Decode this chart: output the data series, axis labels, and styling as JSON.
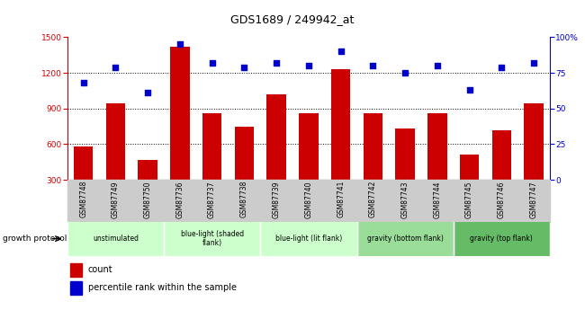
{
  "title": "GDS1689 / 249942_at",
  "samples": [
    "GSM87748",
    "GSM87749",
    "GSM87750",
    "GSM87736",
    "GSM87737",
    "GSM87738",
    "GSM87739",
    "GSM87740",
    "GSM87741",
    "GSM87742",
    "GSM87743",
    "GSM87744",
    "GSM87745",
    "GSM87746",
    "GSM87747"
  ],
  "counts": [
    580,
    940,
    470,
    1420,
    860,
    750,
    1020,
    860,
    1230,
    860,
    730,
    860,
    510,
    720,
    940
  ],
  "percentiles": [
    68,
    79,
    61,
    95,
    82,
    79,
    82,
    80,
    90,
    80,
    75,
    80,
    63,
    79,
    82
  ],
  "ylim_left": [
    300,
    1500
  ],
  "ylim_right": [
    0,
    100
  ],
  "yticks_left": [
    300,
    600,
    900,
    1200,
    1500
  ],
  "yticks_right": [
    0,
    25,
    50,
    75,
    100
  ],
  "bar_color": "#cc0000",
  "dot_color": "#0000cc",
  "bar_width": 0.6,
  "groups": [
    {
      "label": "unstimulated",
      "indices": [
        0,
        1,
        2
      ],
      "color": "#ccffcc"
    },
    {
      "label": "blue-light (shaded\nflank)",
      "indices": [
        3,
        4,
        5
      ],
      "color": "#ccffcc"
    },
    {
      "label": "blue-light (lit flank)",
      "indices": [
        6,
        7,
        8
      ],
      "color": "#ccffcc"
    },
    {
      "label": "gravity (bottom flank)",
      "indices": [
        9,
        10,
        11
      ],
      "color": "#99dd99"
    },
    {
      "label": "gravity (top flank)",
      "indices": [
        12,
        13,
        14
      ],
      "color": "#66bb66"
    }
  ],
  "xlabel_color": "#cc0000",
  "dot_color_str": "#0000cc",
  "growth_protocol_label": "growth protocol",
  "title_fontsize": 9,
  "tick_fontsize": 6.5,
  "label_fontsize": 5.5,
  "group_fontsize": 5.5,
  "legend_fontsize": 7
}
